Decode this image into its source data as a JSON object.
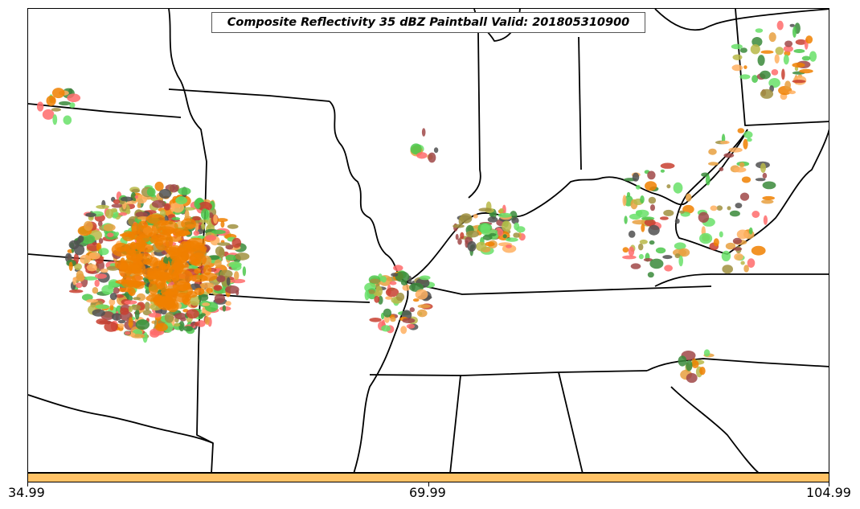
{
  "title": "Composite Reflectivity 35 dBZ Paintball Valid: 201805310900",
  "colorbar": {
    "color": "#ffc266",
    "ticks": [
      "34.99",
      "69.99",
      "104.99"
    ]
  },
  "member_colors": [
    "#ff6b6b",
    "#f08000",
    "#e8a040",
    "#ffb060",
    "#b8b848",
    "#a09040",
    "#4cc84c",
    "#3a8a3a",
    "#a04848",
    "#505050",
    "#68e068",
    "#c84030"
  ]
}
